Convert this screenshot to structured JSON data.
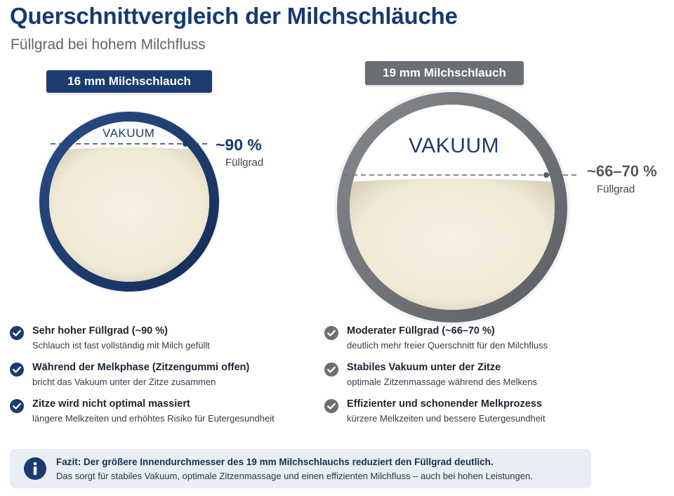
{
  "header": {
    "title": "Querschnittvergleich der Milchschläuche",
    "subtitle": "Füllgrad bei hohem Milchfluss"
  },
  "hoses": [
    {
      "label": "16 mm Milchschlauch",
      "vacuum_label": "VAKUUM",
      "fill_value": "~90 %",
      "fill_label": "Füllgrad",
      "fill_fraction": 0.9,
      "ring_color": "#1c3c70"
    },
    {
      "label": "19 mm Milchschlauch",
      "vacuum_label": "VAKUUM",
      "fill_value": "~66–70 %",
      "fill_label": "Füllgrad",
      "fill_fraction": 0.68,
      "ring_color": "#707378"
    }
  ],
  "left_points": [
    {
      "title": "Sehr hoher Füllgrad (~90 %)",
      "text": "Schlauch ist fast vollständig mit Milch gefüllt"
    },
    {
      "title": "Während der Melkphase (Zitzengummi offen)",
      "text": "bricht das Vakuum unter der Zitze zusammen"
    },
    {
      "title": "Zitze wird nicht optimal massiert",
      "text": "längere Melkzeiten und erhöhtes Risiko für Eutergesundheit"
    }
  ],
  "right_points": [
    {
      "title": "Moderater Füllgrad (~66–70 %)",
      "text": "deutlich mehr freier Querschnitt für den Milchfluss"
    },
    {
      "title": "Stabiles Vakuum unter der Zitze",
      "text": "optimale Zitzenmassage während des Melkens"
    },
    {
      "title": "Effizienter und schonender Melkprozess",
      "text": "kürzere Melkzeiten und bessere Eutergesundheit"
    }
  ],
  "conclusion": {
    "title": "Fazit: Der größere Innendurchmesser des 19 mm Milchschlauchs reduziert den Füllgrad deutlich.",
    "text": "Das sorgt für stabiles Vakuum, optimale Zitzenmassage und einen effizienten Milchfluss – auch bei hohen Leistungen."
  },
  "colors": {
    "title": "#173a70",
    "navy": "#1c3c70",
    "gray": "#707378",
    "milk": "#f1ecdb",
    "note_bg": "#e9eef5"
  },
  "icons": {
    "check_left": "check-circle-icon",
    "check_right": "check-circle-icon",
    "info": "info-icon"
  }
}
